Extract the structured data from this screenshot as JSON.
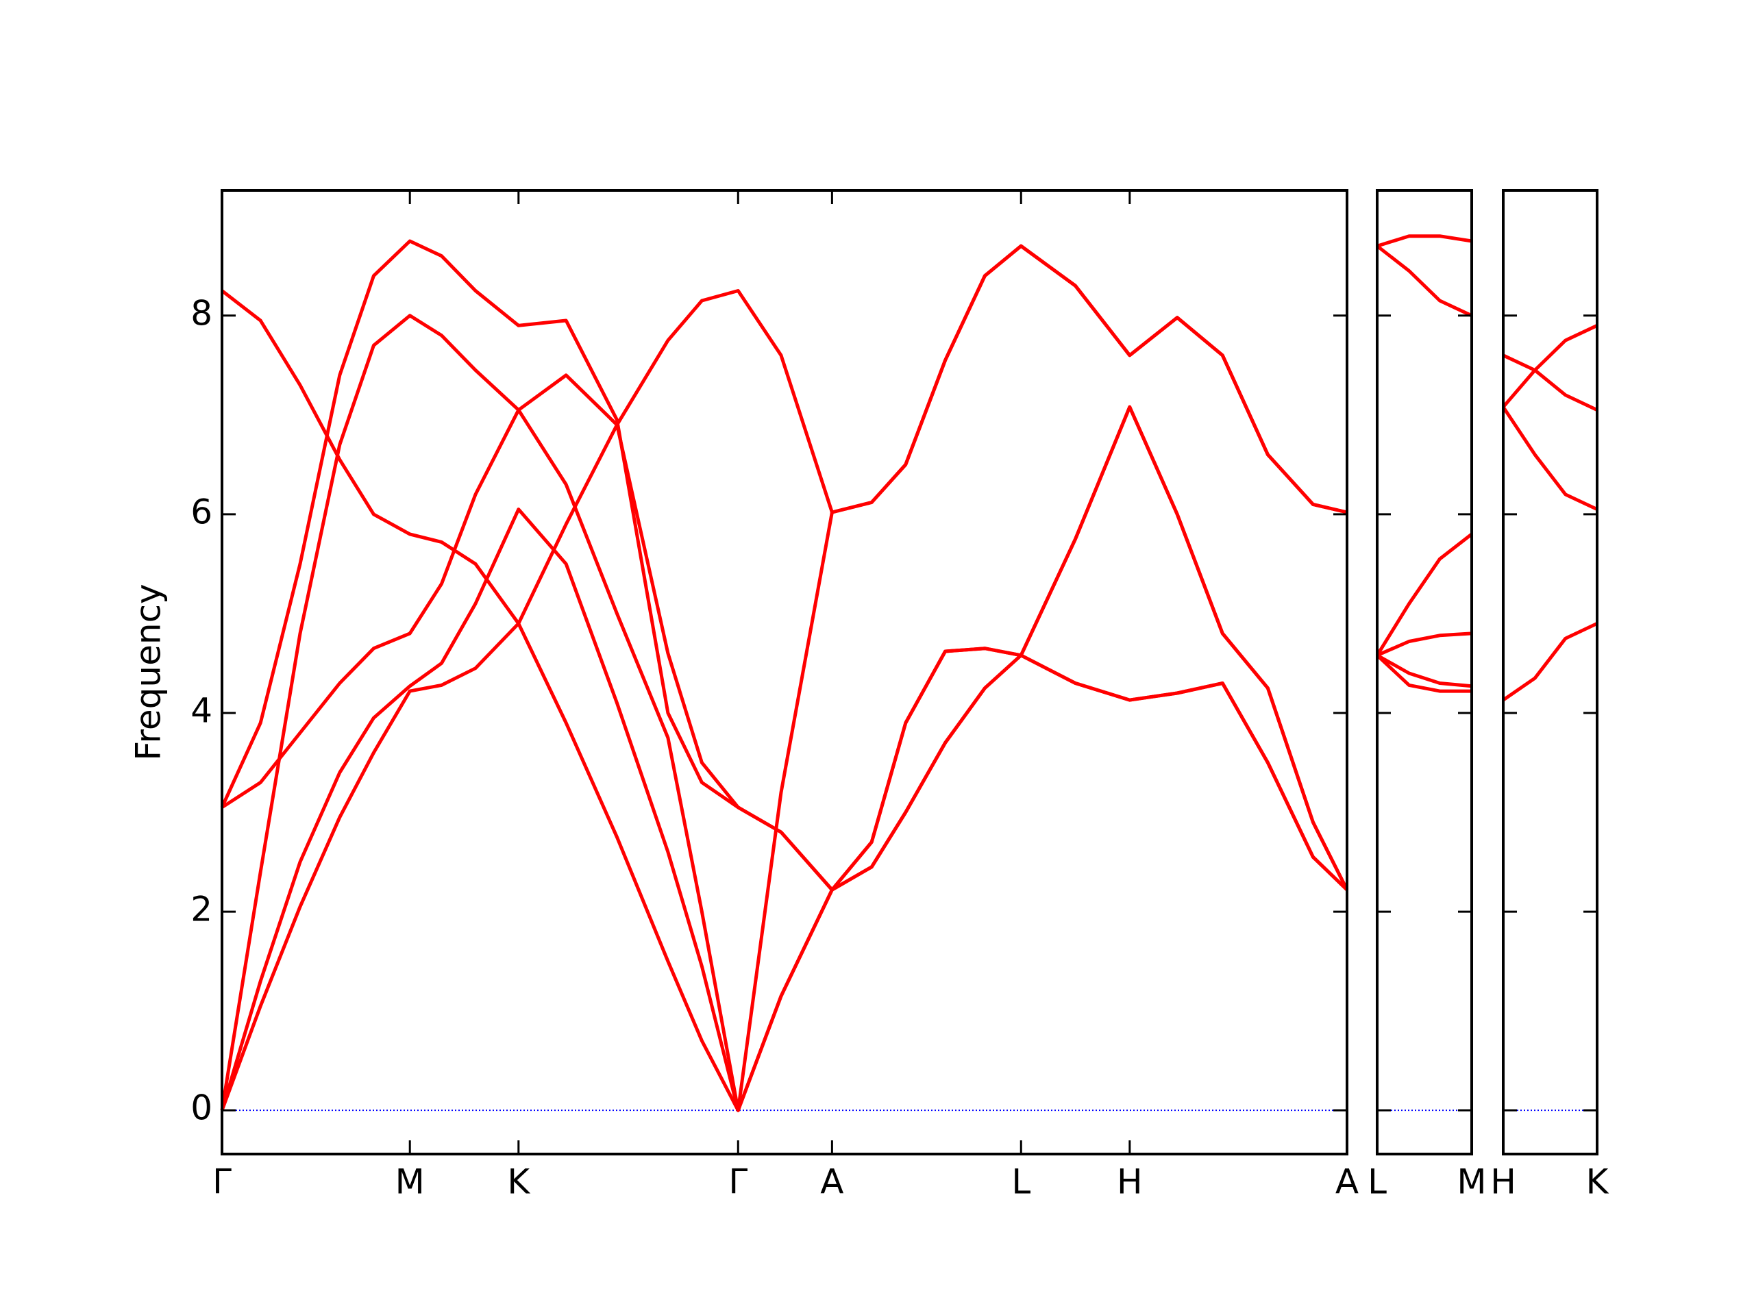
{
  "chart_data": [
    {
      "type": "line",
      "y_label": "Frequency",
      "x": [
        0,
        0.34,
        0.69,
        1.04,
        1.34,
        1.66,
        1.94,
        2.24,
        2.62,
        3.04,
        3.49,
        3.94,
        4.24,
        4.56,
        4.94,
        5.39,
        5.74,
        6.04,
        6.39,
        6.74,
        7.06,
        7.54,
        8.02,
        8.44,
        8.84,
        9.24,
        9.64,
        9.94
      ],
      "series": [
        {
          "color": "#ff0000",
          "values": [
            0,
            1.05,
            2.05,
            2.95,
            3.6,
            4.22,
            4.28,
            4.45,
            4.9,
            5.9,
            6.9,
            7.75,
            8.15,
            8.25,
            7.6,
            6.02,
            6.12,
            6.5,
            7.55,
            8.4,
            8.7,
            8.3,
            7.6,
            7.98,
            7.6,
            6.6,
            6.1,
            6.02
          ]
        },
        {
          "color": "#ff0000",
          "values": [
            0,
            1.3,
            2.5,
            3.4,
            3.95,
            4.27,
            4.5,
            5.1,
            6.05,
            5.5,
            4.1,
            2.6,
            1.45,
            0,
            1.15,
            2.22,
            2.45,
            3.0,
            3.7,
            4.25,
            4.58,
            5.75,
            7.08,
            6.0,
            4.8,
            4.25,
            2.9,
            2.22
          ]
        },
        {
          "color": "#ff0000",
          "values": [
            0,
            2.4,
            4.8,
            6.7,
            7.7,
            8.0,
            7.8,
            7.45,
            7.05,
            6.3,
            5.0,
            3.75,
            2.0,
            0,
            3.2,
            6.02,
            6.12,
            6.5,
            7.55,
            8.4,
            8.7,
            8.3,
            7.6,
            7.98,
            7.6,
            6.6,
            6.1,
            6.02
          ]
        },
        {
          "color": "#ff0000",
          "values": [
            3.05,
            3.3,
            3.8,
            4.3,
            4.65,
            4.8,
            5.3,
            6.2,
            7.05,
            7.4,
            6.9,
            4.6,
            3.5,
            3.05,
            2.8,
            2.22,
            2.7,
            3.9,
            4.62,
            4.65,
            4.58,
            4.3,
            4.13,
            4.2,
            4.3,
            3.5,
            2.55,
            2.22
          ]
        },
        {
          "color": "#ff0000",
          "values": [
            3.05,
            3.9,
            5.5,
            7.4,
            8.4,
            8.75,
            8.6,
            8.25,
            7.9,
            7.95,
            6.95,
            4.0,
            3.3,
            3.05,
            2.8,
            2.22,
            2.7,
            3.9,
            4.62,
            4.65,
            4.58,
            4.3,
            4.13,
            4.2,
            4.3,
            3.5,
            2.55,
            2.22
          ]
        },
        {
          "color": "#ff0000",
          "values": [
            8.25,
            7.95,
            7.3,
            6.55,
            6.0,
            5.8,
            5.72,
            5.5,
            4.9,
            3.9,
            2.75,
            1.5,
            0.7,
            0,
            1.15,
            2.22,
            2.45,
            3.0,
            3.7,
            4.25,
            4.58,
            5.75,
            7.08,
            6.0,
            4.8,
            4.25,
            2.9,
            2.22
          ]
        }
      ],
      "xlim": [
        0,
        9.94
      ],
      "ylim": [
        -0.44,
        9.26
      ],
      "xticks": [
        {
          "value": 0,
          "label": "Γ"
        },
        {
          "value": 1.66,
          "label": "M"
        },
        {
          "value": 2.62,
          "label": "K"
        },
        {
          "value": 4.56,
          "label": "Γ"
        },
        {
          "value": 5.39,
          "label": "A"
        },
        {
          "value": 7.06,
          "label": "L"
        },
        {
          "value": 8.02,
          "label": "H"
        },
        {
          "value": 9.94,
          "label": "A"
        }
      ],
      "yticks": [
        0,
        2,
        4,
        6,
        8
      ],
      "show_ytick_labels": true,
      "reference_line": {
        "value": 0,
        "color": "#0000ff"
      }
    },
    {
      "type": "line",
      "x": [
        0,
        0.28,
        0.55,
        0.83
      ],
      "series": [
        {
          "color": "#ff0000",
          "values": [
            8.7,
            8.8,
            8.8,
            8.75
          ]
        },
        {
          "color": "#ff0000",
          "values": [
            8.7,
            8.45,
            8.15,
            8.0
          ]
        },
        {
          "color": "#ff0000",
          "values": [
            4.58,
            5.1,
            5.55,
            5.8
          ]
        },
        {
          "color": "#ff0000",
          "values": [
            4.58,
            4.72,
            4.78,
            4.8
          ]
        },
        {
          "color": "#ff0000",
          "values": [
            4.58,
            4.4,
            4.3,
            4.27
          ]
        },
        {
          "color": "#ff0000",
          "values": [
            4.58,
            4.28,
            4.22,
            4.22
          ]
        }
      ],
      "xlim": [
        0,
        0.83
      ],
      "ylim": [
        -0.44,
        9.26
      ],
      "xticks": [
        {
          "value": 0,
          "label": "L"
        },
        {
          "value": 0.83,
          "label": "M"
        }
      ],
      "yticks": [
        0,
        2,
        4,
        6,
        8
      ],
      "show_ytick_labels": false,
      "reference_line": {
        "value": 0,
        "color": "#0000ff"
      }
    },
    {
      "type": "line",
      "x": [
        0,
        0.28,
        0.55,
        0.83
      ],
      "series": [
        {
          "color": "#ff0000",
          "values": [
            7.6,
            7.45,
            7.2,
            7.05
          ]
        },
        {
          "color": "#ff0000",
          "values": [
            7.08,
            7.45,
            7.75,
            7.9
          ]
        },
        {
          "color": "#ff0000",
          "values": [
            7.08,
            6.6,
            6.2,
            6.05
          ]
        },
        {
          "color": "#ff0000",
          "values": [
            4.13,
            4.35,
            4.75,
            4.9
          ]
        }
      ],
      "xlim": [
        0,
        0.83
      ],
      "ylim": [
        -0.44,
        9.26
      ],
      "xticks": [
        {
          "value": 0,
          "label": "H"
        },
        {
          "value": 0.83,
          "label": "K"
        }
      ],
      "yticks": [
        0,
        2,
        4,
        6,
        8
      ],
      "show_ytick_labels": false,
      "reference_line": {
        "value": 0,
        "color": "#0000ff"
      }
    }
  ]
}
